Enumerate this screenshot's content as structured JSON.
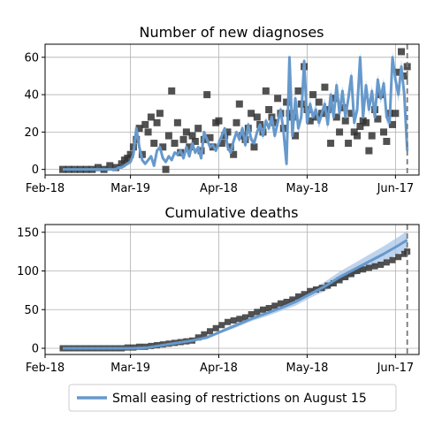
{
  "colors": {
    "model_line": "#6699cc",
    "model_band": "#a9c6e6",
    "observed_marker": "#333333",
    "grid": "#b0b0b0",
    "vline": "#777777"
  },
  "legend": {
    "label": "Small easing of restrictions on August 15",
    "placement": "bottom-center"
  },
  "chart_data": [
    {
      "type": "line",
      "title": "Number of new diagnoses",
      "xlabel": "",
      "ylabel": "",
      "x_tick_labels": [
        "Feb-18",
        "Mar-19",
        "Apr-18",
        "May-18",
        "Jun-17"
      ],
      "x_tick_days": [
        0,
        29,
        59,
        89,
        119
      ],
      "xlim_days": [
        0,
        127
      ],
      "ylim": [
        -3,
        67
      ],
      "yticks": [
        0,
        20,
        40,
        60
      ],
      "grid": true,
      "vline_day": 123,
      "series": [
        {
          "name": "Small easing of restrictions on August 15",
          "kind": "model",
          "x": [
            6,
            8,
            10,
            12,
            14,
            16,
            18,
            20,
            22,
            24,
            25,
            26,
            27,
            28,
            29,
            30,
            31,
            32,
            33,
            34,
            35,
            36,
            37,
            38,
            39,
            40,
            41,
            42,
            43,
            44,
            45,
            46,
            47,
            48,
            49,
            50,
            51,
            52,
            53,
            54,
            55,
            56,
            57,
            58,
            59,
            60,
            61,
            62,
            63,
            64,
            65,
            66,
            67,
            68,
            69,
            70,
            71,
            72,
            73,
            74,
            75,
            76,
            77,
            78,
            79,
            80,
            81,
            82,
            83,
            84,
            85,
            86,
            87,
            88,
            89,
            90,
            91,
            92,
            93,
            94,
            95,
            96,
            97,
            98,
            99,
            100,
            101,
            102,
            103,
            104,
            105,
            106,
            107,
            108,
            109,
            110,
            111,
            112,
            113,
            114,
            115,
            116,
            117,
            118,
            119,
            120,
            121,
            122,
            123
          ],
          "y": [
            0,
            0,
            0,
            0,
            0,
            0,
            0,
            0,
            0,
            0,
            1,
            1,
            2,
            3,
            4,
            8,
            22,
            12,
            5,
            3,
            5,
            7,
            2,
            10,
            12,
            6,
            4,
            7,
            5,
            9,
            8,
            10,
            6,
            12,
            7,
            14,
            9,
            12,
            6,
            20,
            16,
            12,
            13,
            10,
            14,
            18,
            22,
            12,
            9,
            15,
            20,
            16,
            22,
            13,
            24,
            16,
            14,
            20,
            24,
            18,
            26,
            22,
            28,
            18,
            25,
            32,
            20,
            3,
            60,
            18,
            38,
            22,
            28,
            58,
            25,
            35,
            28,
            32,
            25,
            30,
            35,
            24,
            40,
            28,
            45,
            30,
            42,
            28,
            38,
            50,
            25,
            32,
            60,
            28,
            45,
            32,
            42,
            28,
            48,
            38,
            46,
            28,
            25,
            60,
            48,
            40,
            55,
            40,
            10
          ],
          "band_halfwidth": [
            0,
            0,
            0,
            0,
            0,
            0,
            0,
            0,
            0,
            0,
            0,
            0,
            0,
            0,
            0,
            0,
            0,
            0,
            0,
            0,
            0,
            0,
            0,
            0,
            0,
            1,
            1,
            1,
            1,
            1,
            1,
            1,
            1,
            1,
            1,
            1,
            1,
            1,
            1,
            1,
            1,
            1,
            1,
            1,
            1,
            1,
            1,
            1,
            1,
            1,
            1,
            2,
            2,
            2,
            2,
            2,
            2,
            2,
            2,
            2,
            2,
            2,
            2,
            2,
            2,
            2,
            2,
            2,
            2,
            2,
            3,
            3,
            3,
            3,
            3,
            3,
            3,
            3,
            3,
            3,
            3,
            3,
            3,
            3,
            3,
            3,
            3,
            3,
            3,
            3,
            3,
            3,
            3,
            3,
            3,
            3,
            3,
            3,
            3,
            3,
            3,
            3,
            3,
            3,
            3,
            4,
            4,
            4,
            4
          ]
        },
        {
          "name": "",
          "kind": "observed",
          "x": [
            6,
            8,
            10,
            12,
            14,
            16,
            18,
            20,
            22,
            24,
            26,
            27,
            28,
            29,
            30,
            31,
            32,
            33,
            34,
            35,
            36,
            37,
            38,
            39,
            40,
            41,
            42,
            43,
            44,
            45,
            46,
            47,
            48,
            49,
            50,
            51,
            52,
            53,
            54,
            55,
            56,
            57,
            58,
            59,
            60,
            61,
            62,
            63,
            64,
            65,
            66,
            67,
            68,
            69,
            70,
            71,
            72,
            73,
            74,
            75,
            76,
            77,
            78,
            79,
            80,
            81,
            82,
            83,
            84,
            85,
            86,
            87,
            88,
            89,
            90,
            91,
            92,
            93,
            94,
            95,
            96,
            97,
            98,
            99,
            100,
            101,
            102,
            103,
            104,
            105,
            106,
            107,
            108,
            109,
            110,
            111,
            112,
            113,
            114,
            115,
            116,
            117,
            118,
            119,
            120,
            121,
            122,
            123
          ],
          "y": [
            0,
            0,
            0,
            0,
            0,
            0,
            1,
            0,
            2,
            1,
            3,
            5,
            6,
            8,
            12,
            16,
            22,
            8,
            24,
            20,
            28,
            14,
            25,
            30,
            12,
            0,
            18,
            42,
            14,
            25,
            9,
            16,
            20,
            12,
            18,
            15,
            22,
            10,
            16,
            40,
            17,
            12,
            25,
            26,
            14,
            18,
            20,
            12,
            8,
            25,
            35,
            18,
            16,
            22,
            30,
            12,
            28,
            24,
            20,
            42,
            32,
            28,
            25,
            38,
            30,
            22,
            36,
            30,
            28,
            18,
            42,
            35,
            55,
            32,
            26,
            40,
            28,
            36,
            30,
            44,
            32,
            14,
            38,
            28,
            20,
            33,
            26,
            14,
            30,
            20,
            18,
            23,
            26,
            25,
            10,
            18,
            32,
            27,
            40,
            20,
            15,
            30,
            24,
            30,
            52,
            63,
            50,
            55
          ]
        }
      ]
    },
    {
      "type": "line",
      "title": "Cumulative deaths",
      "xlabel": "",
      "ylabel": "",
      "x_tick_labels": [
        "Feb-18",
        "Mar-19",
        "Apr-18",
        "May-18",
        "Jun-17"
      ],
      "x_tick_days": [
        0,
        29,
        59,
        89,
        119
      ],
      "xlim_days": [
        0,
        127
      ],
      "ylim": [
        -8,
        160
      ],
      "yticks": [
        0,
        50,
        100,
        150
      ],
      "grid": true,
      "vline_day": 123,
      "series": [
        {
          "name": "Small easing of restrictions on August 15",
          "kind": "model",
          "x": [
            6,
            10,
            15,
            20,
            25,
            30,
            35,
            40,
            45,
            50,
            55,
            60,
            65,
            70,
            75,
            80,
            85,
            90,
            95,
            100,
            105,
            110,
            115,
            120,
            123
          ],
          "y": [
            0,
            0,
            0,
            0,
            0,
            0,
            1,
            4,
            7,
            10,
            14,
            22,
            30,
            38,
            45,
            52,
            60,
            70,
            80,
            92,
            102,
            112,
            122,
            133,
            140
          ],
          "band_halfwidth": [
            0,
            0,
            0,
            0,
            0,
            0,
            0,
            1,
            1,
            1,
            2,
            2,
            3,
            3,
            4,
            4,
            5,
            5,
            6,
            7,
            8,
            9,
            10,
            11,
            12
          ]
        },
        {
          "name": "",
          "kind": "observed",
          "x": [
            6,
            8,
            10,
            12,
            14,
            16,
            18,
            20,
            22,
            24,
            26,
            28,
            30,
            32,
            34,
            36,
            38,
            40,
            42,
            44,
            46,
            48,
            50,
            52,
            54,
            56,
            58,
            60,
            62,
            64,
            66,
            68,
            70,
            72,
            74,
            76,
            78,
            80,
            82,
            84,
            86,
            88,
            90,
            92,
            94,
            96,
            98,
            100,
            102,
            104,
            106,
            108,
            110,
            112,
            114,
            116,
            118,
            120,
            122,
            123
          ],
          "y": [
            0,
            0,
            0,
            0,
            0,
            0,
            0,
            0,
            0,
            0,
            0,
            1,
            1,
            2,
            2,
            3,
            4,
            5,
            6,
            7,
            8,
            9,
            10,
            14,
            18,
            22,
            26,
            30,
            34,
            36,
            38,
            40,
            44,
            47,
            50,
            52,
            55,
            58,
            60,
            63,
            67,
            70,
            74,
            76,
            78,
            81,
            84,
            88,
            92,
            96,
            100,
            102,
            104,
            106,
            108,
            111,
            114,
            118,
            122,
            125
          ]
        }
      ]
    }
  ]
}
